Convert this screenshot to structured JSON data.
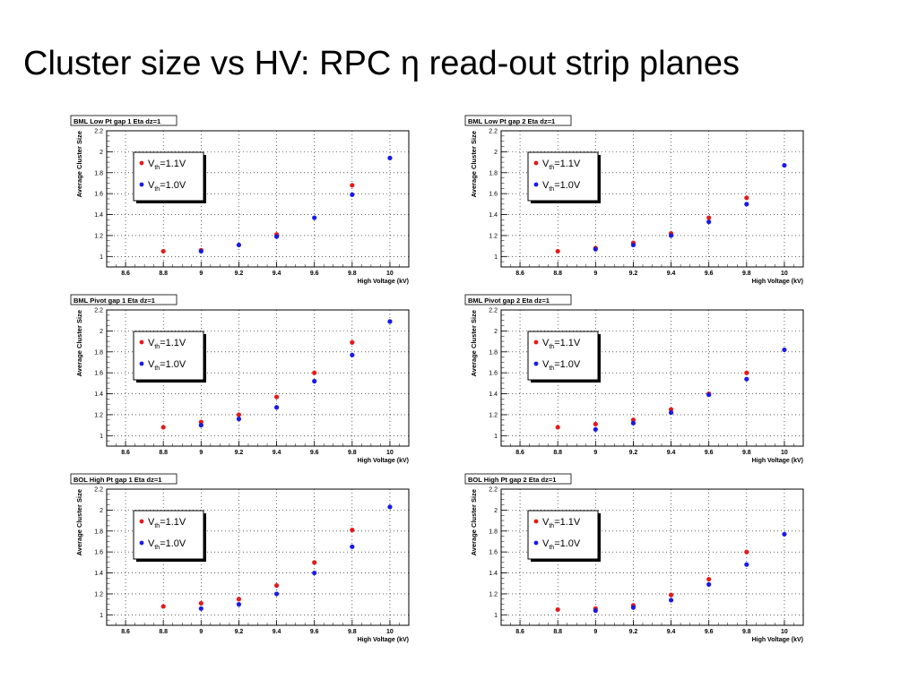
{
  "slide_title": "Cluster size vs HV: RPC η read-out strip planes",
  "colors": {
    "series_1": "#e41a1c",
    "series_2": "#1a1ae6",
    "grid": "#000000",
    "frame": "#000000"
  },
  "legend_placement": "top-left",
  "legend": {
    "series_1": {
      "main": "V",
      "sub": "th",
      "rest": "=1.1V"
    },
    "series_2": {
      "main": "V",
      "sub": "th",
      "rest": "=1.0V"
    }
  },
  "chart_data": [
    {
      "type": "scatter",
      "title": "BML Low Pt gap 1 Eta dz=1",
      "xlabel": "High Voltage (kV)",
      "ylabel": "Average Cluster Size",
      "xlim": [
        8.5,
        10.1
      ],
      "ylim": [
        0.9,
        2.2
      ],
      "x_ticks": [
        "8.6",
        "8.8",
        "9",
        "9.2",
        "9.4",
        "9.6",
        "9.8",
        "10"
      ],
      "y_ticks": [
        "1",
        "1.2",
        "1.4",
        "1.6",
        "1.8",
        "2",
        "2.2"
      ],
      "grid": true,
      "series": [
        {
          "name": "Vth=1.1V",
          "x": [
            8.8,
            9.0,
            9.4,
            9.8
          ],
          "y": [
            1.05,
            1.06,
            1.21,
            1.68
          ]
        },
        {
          "name": "Vth=1.0V",
          "x": [
            9.0,
            9.2,
            9.4,
            9.6,
            9.8,
            10.0
          ],
          "y": [
            1.05,
            1.11,
            1.19,
            1.37,
            1.59,
            1.94
          ]
        }
      ]
    },
    {
      "type": "scatter",
      "title": "BML Low Pt gap 2 Eta dz=1",
      "xlabel": "High Voltage (kV)",
      "ylabel": "Average Cluster Size",
      "xlim": [
        8.5,
        10.1
      ],
      "ylim": [
        0.9,
        2.2
      ],
      "x_ticks": [
        "8.6",
        "8.8",
        "9",
        "9.2",
        "9.4",
        "9.6",
        "9.8",
        "10"
      ],
      "y_ticks": [
        "1",
        "1.2",
        "1.4",
        "1.6",
        "1.8",
        "2",
        "2.2"
      ],
      "grid": true,
      "series": [
        {
          "name": "Vth=1.1V",
          "x": [
            8.8,
            9.0,
            9.2,
            9.4,
            9.6,
            9.8
          ],
          "y": [
            1.05,
            1.08,
            1.13,
            1.22,
            1.37,
            1.56
          ]
        },
        {
          "name": "Vth=1.0V",
          "x": [
            9.0,
            9.2,
            9.4,
            9.6,
            9.8,
            10.0
          ],
          "y": [
            1.07,
            1.11,
            1.2,
            1.33,
            1.5,
            1.87
          ]
        }
      ]
    },
    {
      "type": "scatter",
      "title": "BML Pivot gap 1 Eta dz=1",
      "xlabel": "High Voltage (kV)",
      "ylabel": "Average Cluster Size",
      "xlim": [
        8.5,
        10.1
      ],
      "ylim": [
        0.9,
        2.2
      ],
      "x_ticks": [
        "8.6",
        "8.8",
        "9",
        "9.2",
        "9.4",
        "9.6",
        "9.8",
        "10"
      ],
      "y_ticks": [
        "1",
        "1.2",
        "1.4",
        "1.6",
        "1.8",
        "2",
        "2.2"
      ],
      "grid": true,
      "series": [
        {
          "name": "Vth=1.1V",
          "x": [
            8.8,
            9.0,
            9.2,
            9.4,
            9.6,
            9.8
          ],
          "y": [
            1.08,
            1.13,
            1.2,
            1.37,
            1.6,
            1.89
          ]
        },
        {
          "name": "Vth=1.0V",
          "x": [
            9.0,
            9.2,
            9.4,
            9.6,
            9.8,
            10.0
          ],
          "y": [
            1.1,
            1.16,
            1.27,
            1.52,
            1.77,
            2.09
          ]
        }
      ]
    },
    {
      "type": "scatter",
      "title": "BML Pivot gap 2 Eta dz=1",
      "xlabel": "High Voltage (kV)",
      "ylabel": "Average Cluster Size",
      "xlim": [
        8.5,
        10.1
      ],
      "ylim": [
        0.9,
        2.2
      ],
      "x_ticks": [
        "8.6",
        "8.8",
        "9",
        "9.2",
        "9.4",
        "9.6",
        "9.8",
        "10"
      ],
      "y_ticks": [
        "1",
        "1.2",
        "1.4",
        "1.6",
        "1.8",
        "2",
        "2.2"
      ],
      "grid": true,
      "series": [
        {
          "name": "Vth=1.1V",
          "x": [
            8.8,
            9.0,
            9.2,
            9.4,
            9.6,
            9.8
          ],
          "y": [
            1.08,
            1.11,
            1.15,
            1.25,
            1.4,
            1.6
          ]
        },
        {
          "name": "Vth=1.0V",
          "x": [
            9.0,
            9.2,
            9.4,
            9.6,
            9.8,
            10.0
          ],
          "y": [
            1.06,
            1.12,
            1.22,
            1.39,
            1.54,
            1.82
          ]
        }
      ]
    },
    {
      "type": "scatter",
      "title": "BOL High Pt gap 1 Eta dz=1",
      "xlabel": "High Voltage (kV)",
      "ylabel": "Average Cluster Size",
      "xlim": [
        8.5,
        10.1
      ],
      "ylim": [
        0.9,
        2.2
      ],
      "x_ticks": [
        "8.6",
        "8.8",
        "9",
        "9.2",
        "9.4",
        "9.6",
        "9.8",
        "10"
      ],
      "y_ticks": [
        "1",
        "1.2",
        "1.4",
        "1.6",
        "1.8",
        "2",
        "2.2"
      ],
      "grid": true,
      "series": [
        {
          "name": "Vth=1.1V",
          "x": [
            8.8,
            9.0,
            9.2,
            9.4,
            9.6,
            9.8
          ],
          "y": [
            1.08,
            1.11,
            1.15,
            1.28,
            1.5,
            1.81
          ]
        },
        {
          "name": "Vth=1.0V",
          "x": [
            9.0,
            9.2,
            9.4,
            9.6,
            9.8,
            10.0
          ],
          "y": [
            1.06,
            1.1,
            1.2,
            1.4,
            1.65,
            2.03
          ]
        }
      ]
    },
    {
      "type": "scatter",
      "title": "BOL High Pt gap 2 Eta dz=1",
      "xlabel": "High Voltage (kV)",
      "ylabel": "Average Cluster Size",
      "xlim": [
        8.5,
        10.1
      ],
      "ylim": [
        0.9,
        2.2
      ],
      "x_ticks": [
        "8.6",
        "8.8",
        "9",
        "9.2",
        "9.4",
        "9.6",
        "9.8",
        "10"
      ],
      "y_ticks": [
        "1",
        "1.2",
        "1.4",
        "1.6",
        "1.8",
        "2",
        "2.2"
      ],
      "grid": true,
      "series": [
        {
          "name": "Vth=1.1V",
          "x": [
            8.8,
            9.0,
            9.2,
            9.4,
            9.6,
            9.8
          ],
          "y": [
            1.05,
            1.06,
            1.09,
            1.19,
            1.34,
            1.6
          ]
        },
        {
          "name": "Vth=1.0V",
          "x": [
            9.0,
            9.2,
            9.4,
            9.6,
            9.8,
            10.0
          ],
          "y": [
            1.04,
            1.07,
            1.14,
            1.29,
            1.48,
            1.77
          ]
        }
      ]
    }
  ]
}
